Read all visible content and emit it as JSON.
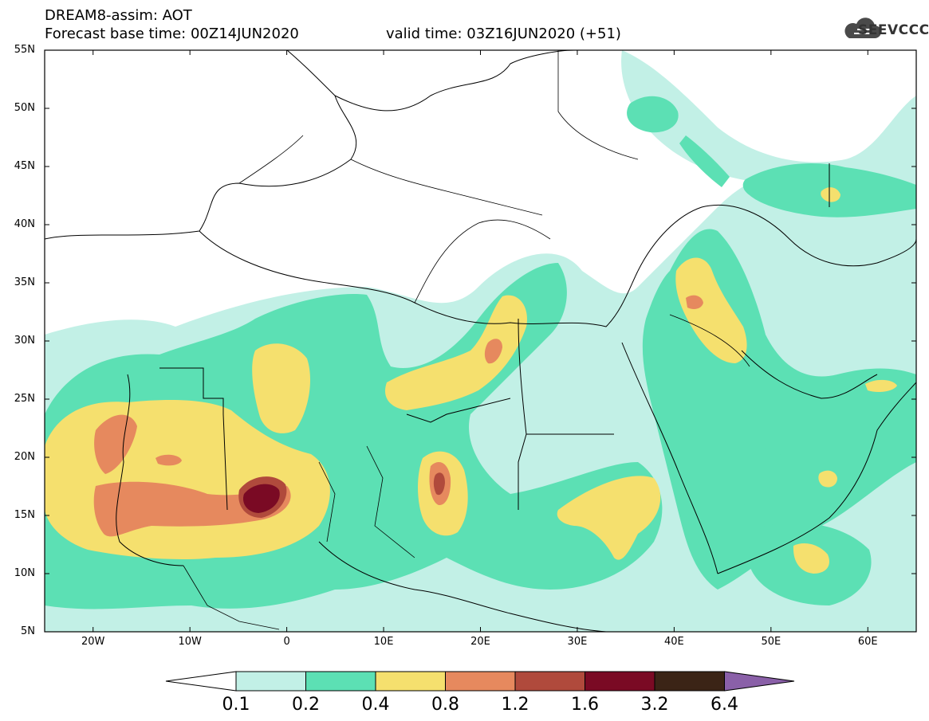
{
  "header": {
    "line1": "DREAM8-assim: AOT",
    "line2": "Forecast base time: 00Z14JUN2020",
    "valid": "valid time: 03Z16JUN2020 (+51)"
  },
  "logo": {
    "text": "SEEVCCC",
    "icon": "cloud-icon"
  },
  "map": {
    "lat_ticks": [
      "55N",
      "50N",
      "45N",
      "40N",
      "35N",
      "30N",
      "25N",
      "20N",
      "15N",
      "10N",
      "5N"
    ],
    "lon_ticks": [
      "20W",
      "10W",
      "0",
      "10E",
      "20E",
      "30E",
      "40E",
      "50E",
      "60E"
    ],
    "extent": {
      "lon": [
        -25,
        65
      ],
      "lat": [
        5,
        55
      ]
    }
  },
  "colorbar": {
    "labels": [
      "0.1",
      "0.2",
      "0.4",
      "0.8",
      "1.2",
      "1.6",
      "3.2",
      "6.4"
    ],
    "colors": [
      "#ffffff",
      "#c2f0e6",
      "#5ce0b4",
      "#f5e06e",
      "#e6895e",
      "#b04a3c",
      "#7a0a24",
      "#3b2416",
      "#8a60a8"
    ]
  }
}
